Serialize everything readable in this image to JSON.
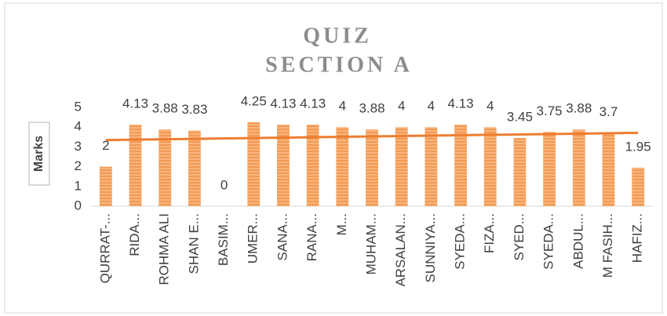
{
  "chart_data": {
    "type": "bar",
    "title": "QUIZ",
    "subtitle": "SECTION A",
    "y_label": "Marks",
    "categories": [
      "QURRAT-...",
      "RIDA...",
      "ROHMA ALI",
      "SHAN E...",
      "BASIM...",
      "UMER...",
      "SANA...",
      "RANA...",
      "M...",
      "MUHAM...",
      "ARSALAN...",
      "SUNNIYA...",
      "SYEDA...",
      "FIZA...",
      "SYED...",
      "SYEDA...",
      "ABDUL...",
      "M FASIH...",
      "HAFIZ..."
    ],
    "values": [
      2,
      4.13,
      3.88,
      3.83,
      0,
      4.25,
      4.13,
      4.13,
      4,
      3.88,
      4,
      4,
      4.13,
      4,
      3.45,
      3.75,
      3.88,
      3.7,
      1.95
    ],
    "color": "#f5a566",
    "trendline": "linear",
    "trendline_color": "#ed7d31",
    "ylim": [
      0,
      5
    ],
    "yticks": [
      0,
      1,
      2,
      3,
      4,
      5
    ],
    "grid": false
  }
}
